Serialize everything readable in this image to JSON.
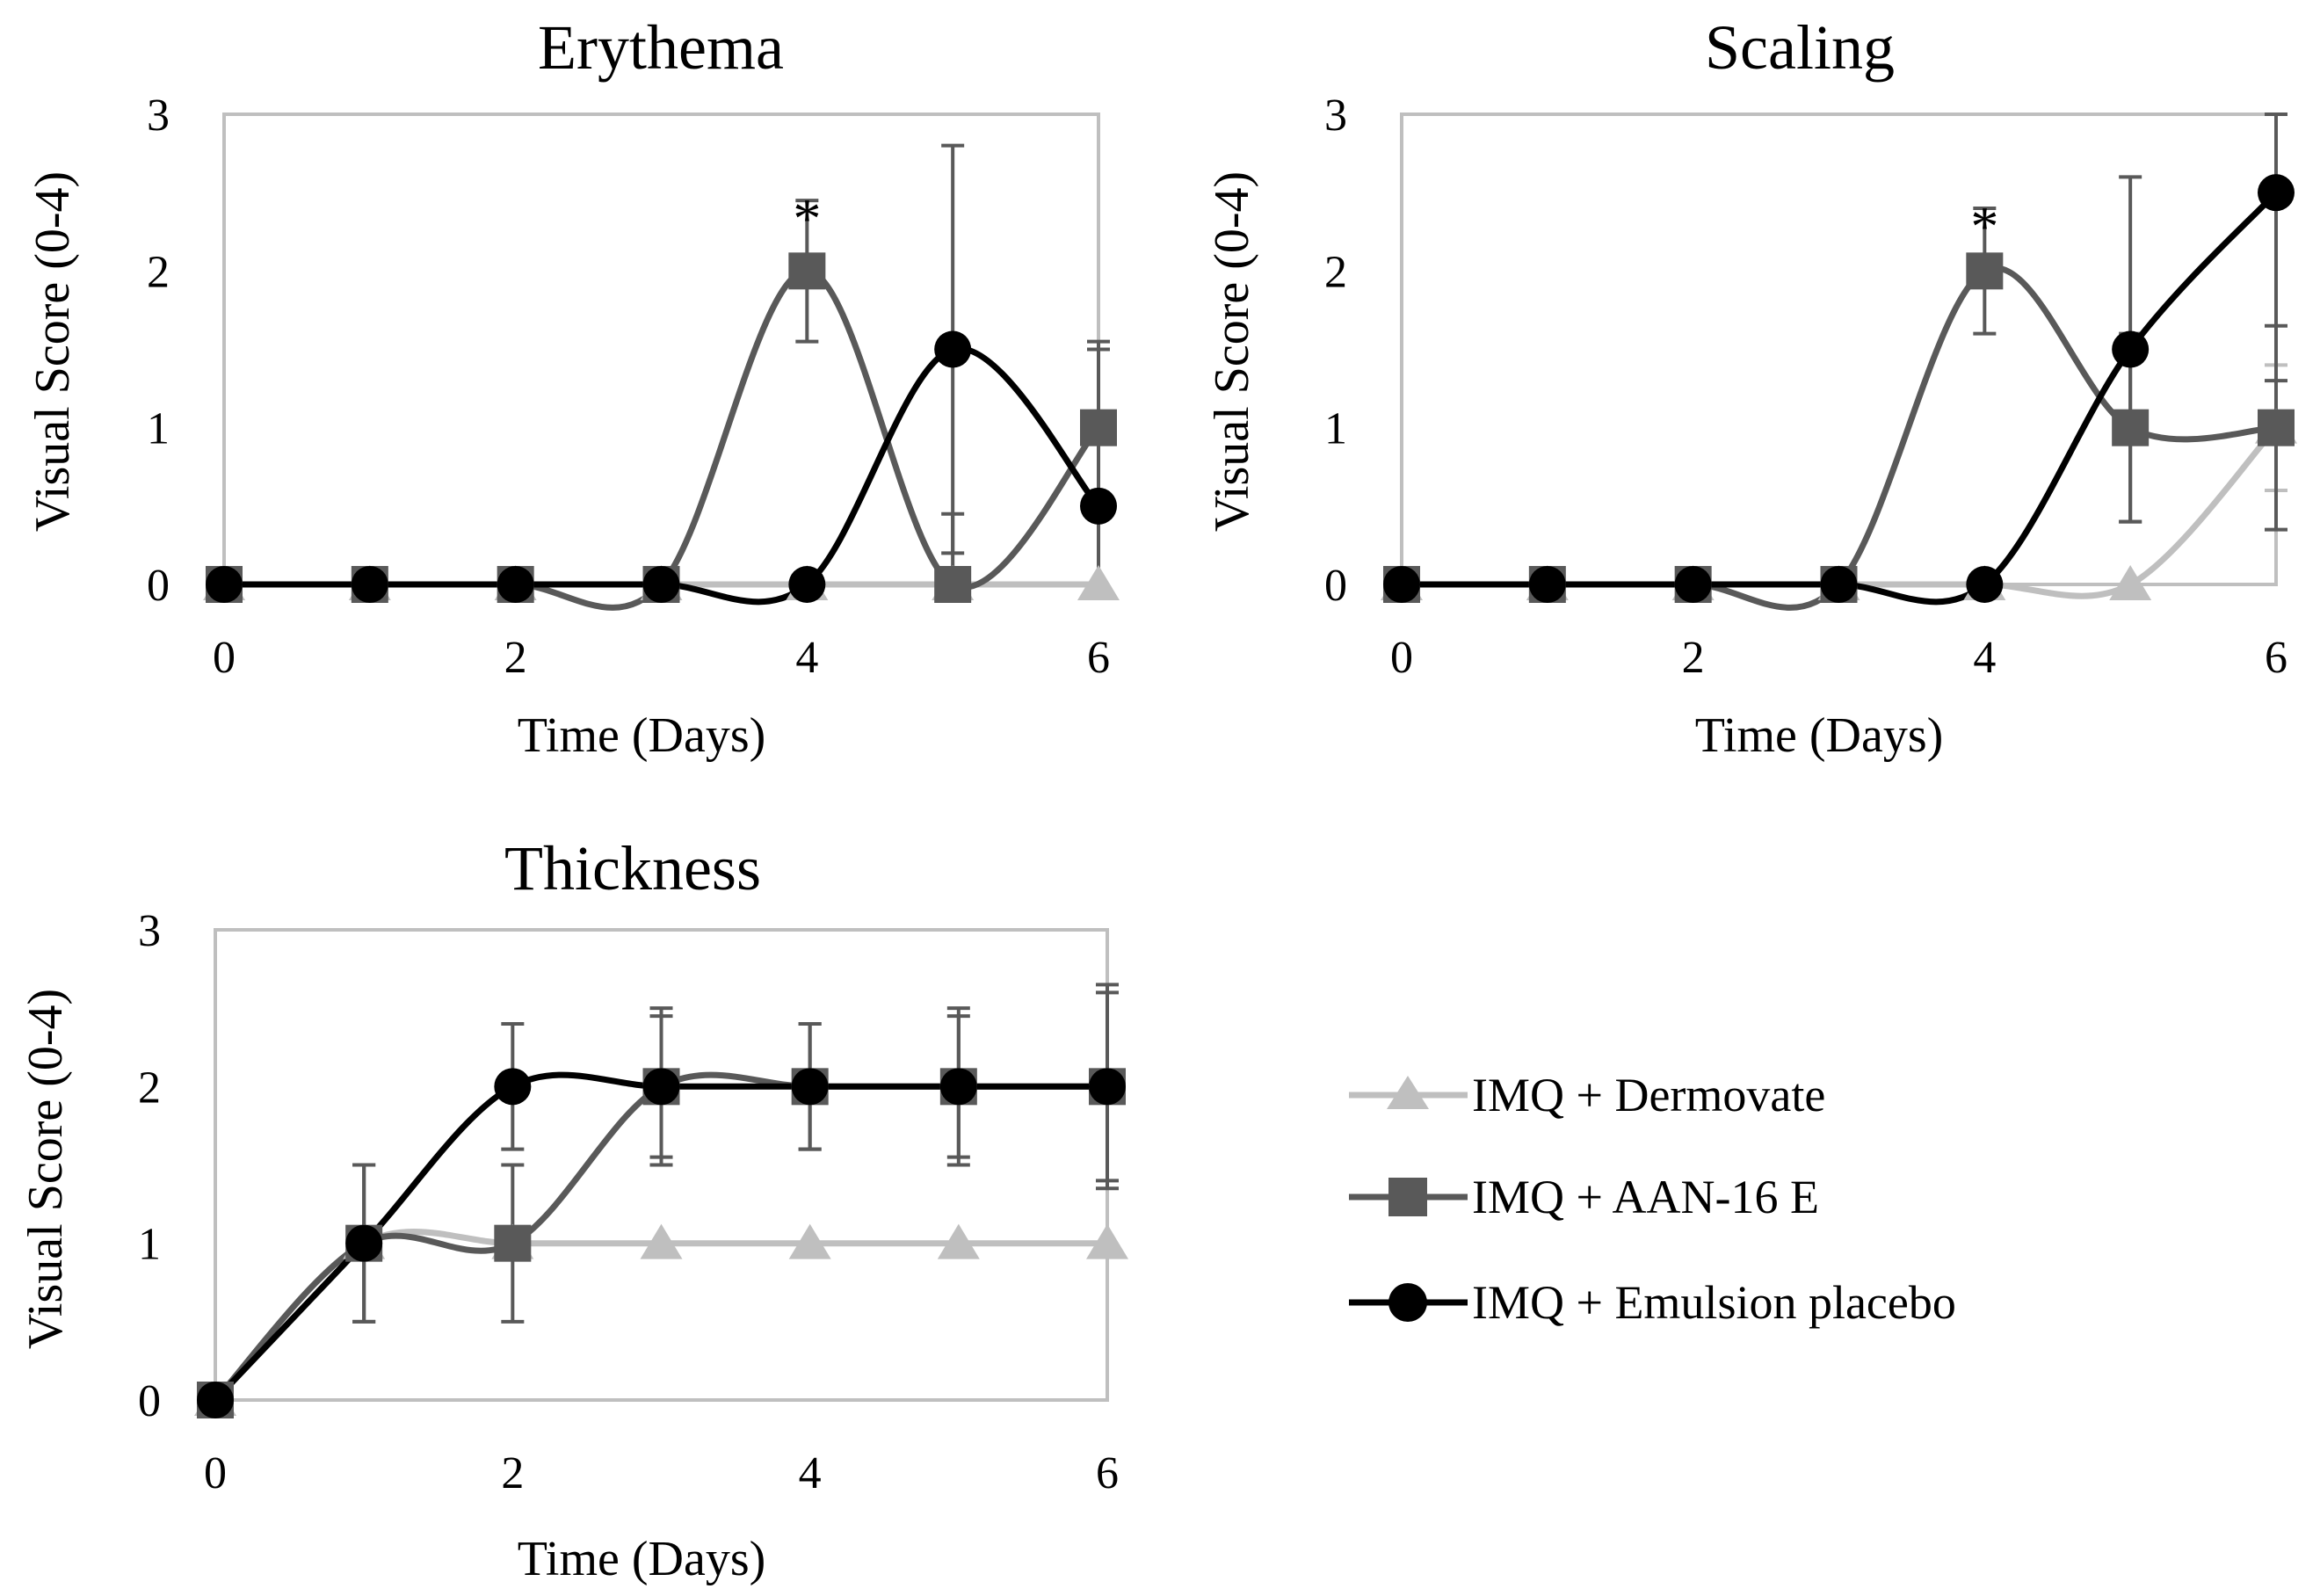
{
  "chart_data": [
    {
      "type": "line",
      "title": "Erythema",
      "xlabel": "Time (Days)",
      "ylabel": "Visual Score (0-4)",
      "xlim": [
        0,
        6
      ],
      "ylim": [
        0,
        3
      ],
      "xticks": [
        0,
        2,
        4,
        6
      ],
      "yticks": [
        0,
        1,
        2,
        3
      ],
      "x": [
        0,
        1,
        2,
        3,
        4,
        5,
        6
      ],
      "series": [
        {
          "name": "IMQ + Dermovate",
          "values": [
            0,
            0,
            0,
            0,
            0,
            0,
            0
          ],
          "errors": [
            0,
            0,
            0,
            0,
            0,
            0,
            0
          ]
        },
        {
          "name": "IMQ + AAN-16 E",
          "values": [
            0,
            0,
            0,
            0,
            2,
            0,
            1
          ],
          "errors": [
            0,
            0,
            0,
            0,
            0.45,
            0.45,
            0.55
          ]
        },
        {
          "name": "IMQ + Emulsion placebo",
          "values": [
            0,
            0,
            0,
            0,
            0,
            1.5,
            0.5
          ],
          "errors": [
            0,
            0,
            0,
            0,
            0,
            1.3,
            1.0
          ]
        }
      ],
      "annotations": [
        {
          "text": "*",
          "x": 4,
          "y": 2.45
        }
      ]
    },
    {
      "type": "line",
      "title": "Scaling",
      "xlabel": "Time (Days)",
      "ylabel": "Visual Score (0-4)",
      "xlim": [
        0,
        6
      ],
      "ylim": [
        0,
        3
      ],
      "xticks": [
        0,
        2,
        4,
        6
      ],
      "yticks": [
        0,
        1,
        2,
        3
      ],
      "x": [
        0,
        1,
        2,
        3,
        4,
        5,
        6
      ],
      "series": [
        {
          "name": "IMQ + Dermovate",
          "values": [
            0,
            0,
            0,
            0,
            0,
            0,
            1
          ],
          "errors": [
            0,
            0,
            0,
            0,
            0,
            0,
            0.4
          ]
        },
        {
          "name": "IMQ + AAN-16 E",
          "values": [
            0,
            0,
            0,
            0,
            2,
            1,
            1
          ],
          "errors": [
            0,
            0,
            0,
            0,
            0.4,
            0.6,
            0.65
          ]
        },
        {
          "name": "IMQ + Emulsion placebo",
          "values": [
            0,
            0,
            0,
            0,
            0,
            1.5,
            2.5
          ],
          "errors": [
            0,
            0,
            0,
            0,
            0,
            1.1,
            1.2
          ]
        }
      ],
      "annotations": [
        {
          "text": "*",
          "x": 4,
          "y": 2.4
        }
      ]
    },
    {
      "type": "line",
      "title": "Thickness",
      "xlabel": "Time (Days)",
      "ylabel": "Visual Score (0-4)",
      "xlim": [
        0,
        6
      ],
      "ylim": [
        0,
        3
      ],
      "xticks": [
        0,
        2,
        4,
        6
      ],
      "yticks": [
        0,
        1,
        2,
        3
      ],
      "x": [
        0,
        1,
        2,
        3,
        4,
        5,
        6
      ],
      "series": [
        {
          "name": "IMQ + Dermovate",
          "values": [
            0,
            1,
            1,
            1,
            1,
            1,
            1
          ],
          "errors": [
            0,
            0,
            0,
            0,
            0,
            0,
            0
          ]
        },
        {
          "name": "IMQ + AAN-16 E",
          "values": [
            0,
            1,
            1,
            2,
            2,
            2,
            2
          ],
          "errors": [
            0,
            0.5,
            0.5,
            0.5,
            0.4,
            0.5,
            0.6
          ]
        },
        {
          "name": "IMQ + Emulsion placebo",
          "values": [
            0,
            1,
            2,
            2,
            2,
            2,
            2
          ],
          "errors": [
            0,
            0.5,
            0.4,
            0.45,
            0.4,
            0.45,
            0.65
          ]
        }
      ],
      "annotations": []
    }
  ],
  "legend": {
    "items": [
      {
        "label": "IMQ + Dermovate",
        "marker": "triangle",
        "color": "#bfbfbf"
      },
      {
        "label": "IMQ + AAN-16 E",
        "marker": "square",
        "color": "#595959"
      },
      {
        "label": "IMQ + Emulsion placebo",
        "marker": "circle",
        "color": "#000000"
      }
    ]
  },
  "colors": {
    "dermovate": "#bfbfbf",
    "aan": "#595959",
    "placebo": "#000000",
    "frame": "#bfbfbf",
    "errorbar": "#595959"
  }
}
